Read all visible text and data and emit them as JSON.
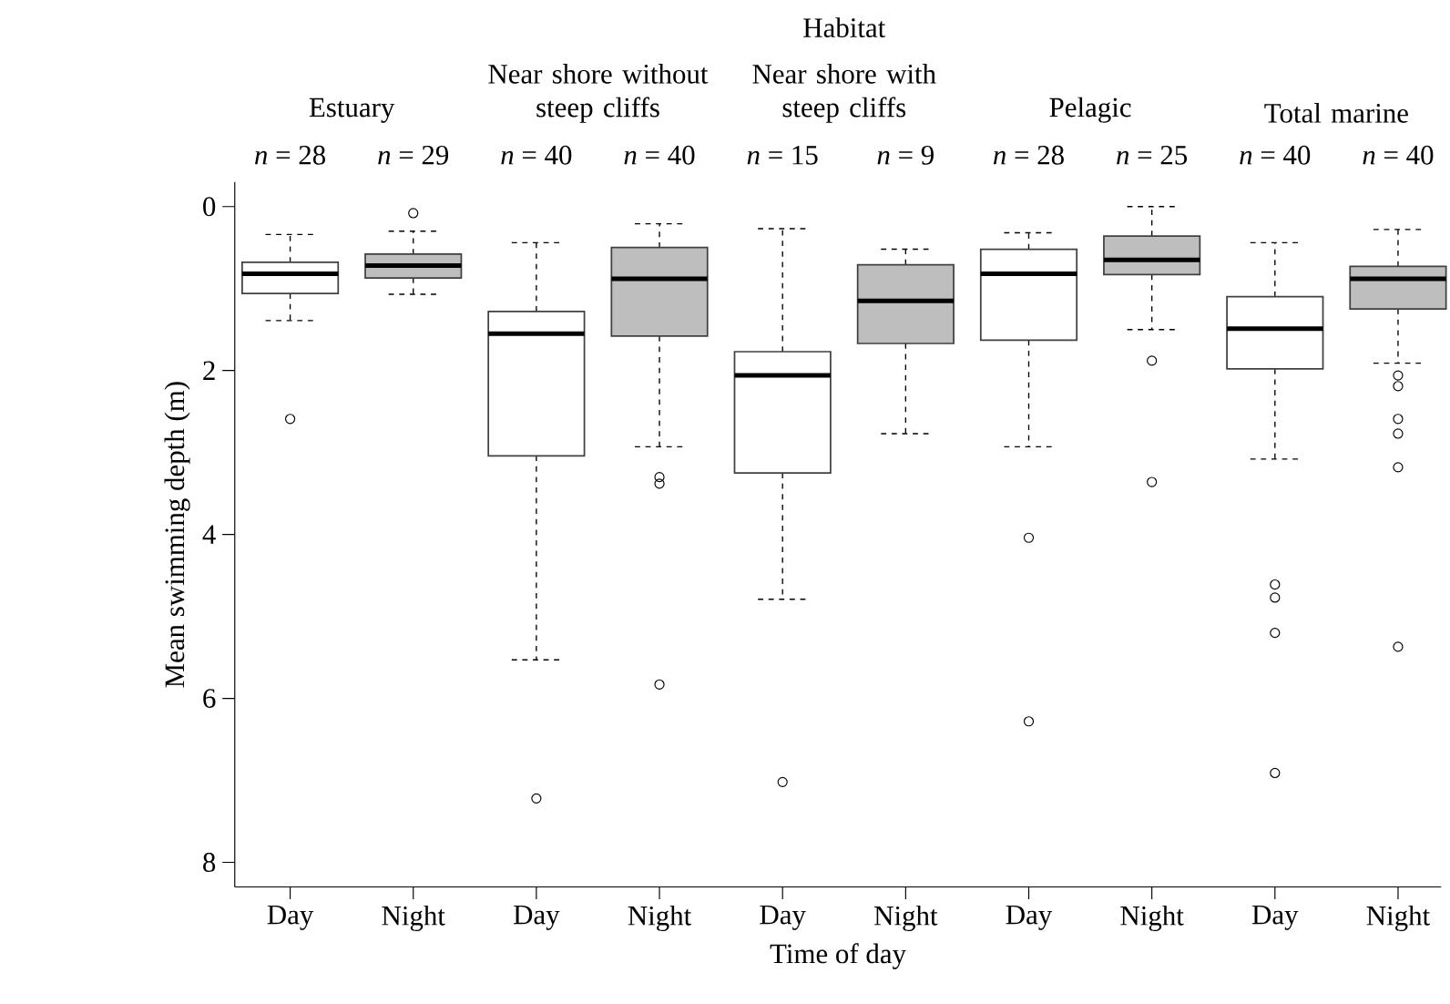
{
  "chart_data": {
    "type": "box",
    "title": "Habitat",
    "xlabel": "Time of day",
    "ylabel": "Mean swimming depth (m)",
    "categories": [
      "Day",
      "Night",
      "Day",
      "Night",
      "Day",
      "Night",
      "Day",
      "Night",
      "Day",
      "Night"
    ],
    "colors": [
      "#ffffff",
      "#bebebe",
      "#ffffff",
      "#bebebe",
      "#ffffff",
      "#bebebe",
      "#ffffff",
      "#bebebe",
      "#ffffff",
      "#bebebe"
    ],
    "boxes": [
      {
        "low": 0.34,
        "q1": 0.68,
        "median": 0.82,
        "q3": 1.06,
        "high": 1.39,
        "outliers": [
          2.59
        ]
      },
      {
        "low": 0.3,
        "q1": 0.58,
        "median": 0.72,
        "q3": 0.87,
        "high": 1.07,
        "outliers": [
          0.08
        ]
      },
      {
        "low": 0.44,
        "q1": 1.28,
        "median": 1.55,
        "q3": 3.04,
        "high": 5.53,
        "outliers": [
          7.22
        ]
      },
      {
        "low": 0.21,
        "q1": 0.5,
        "median": 0.88,
        "q3": 1.58,
        "high": 2.93,
        "outliers": [
          3.3,
          3.38,
          5.83
        ]
      },
      {
        "low": 0.27,
        "q1": 1.77,
        "median": 2.06,
        "q3": 3.25,
        "high": 4.79,
        "outliers": [
          7.02
        ]
      },
      {
        "low": 0.52,
        "q1": 0.71,
        "median": 1.15,
        "q3": 1.67,
        "high": 2.77
      },
      {
        "low": 0.32,
        "q1": 0.52,
        "median": 0.82,
        "q3": 1.63,
        "high": 2.93,
        "outliers": [
          4.04,
          6.28
        ]
      },
      {
        "low": 0.0,
        "q1": 0.36,
        "median": 0.65,
        "q3": 0.83,
        "high": 1.5,
        "outliers": [
          1.88,
          3.36
        ]
      },
      {
        "low": 0.44,
        "q1": 1.1,
        "median": 1.49,
        "q3": 1.98,
        "high": 3.08,
        "outliers": [
          4.61,
          4.77,
          5.2,
          6.91
        ]
      },
      {
        "low": 0.28,
        "q1": 0.73,
        "median": 0.88,
        "q3": 1.25,
        "high": 1.91,
        "outliers": [
          2.06,
          2.19,
          2.59,
          2.77,
          3.18,
          5.37
        ]
      }
    ],
    "ylim": [
      8.3,
      -0.3
    ],
    "yticks": [
      0,
      2,
      4,
      6,
      8
    ],
    "annotations": [
      "Estuary",
      "Near shore without steep cliffs",
      "Near shore with steep cliffs",
      "Pelagic",
      "Total marine",
      "*n* = 28",
      "*n* = 29",
      "*n* = 40",
      "*n* = 40",
      "*n* = 15",
      "*n* = 9",
      "*n* = 28",
      "*n* = 25",
      "*n* = 40",
      "*n* = 40"
    ]
  }
}
